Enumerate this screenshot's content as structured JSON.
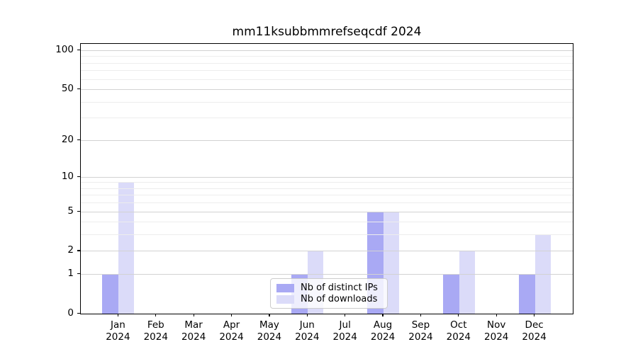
{
  "title": "mm11ksubbmmrefseqcdf 2024",
  "legend": {
    "items": [
      {
        "label": "Nb of distinct IPs",
        "color": "#a9a9f4"
      },
      {
        "label": "Nb of downloads",
        "color": "#dbdbf9"
      }
    ]
  },
  "chart_data": {
    "type": "bar",
    "title": "mm11ksubbmmrefseqcdf 2024",
    "categories": [
      "Jan",
      "Feb",
      "Mar",
      "Apr",
      "May",
      "Jun",
      "Jul",
      "Aug",
      "Sep",
      "Oct",
      "Nov",
      "Dec"
    ],
    "xtick_year": "2024",
    "series": [
      {
        "name": "Nb of distinct IPs",
        "color": "#a9a9f4",
        "values": [
          1,
          0,
          0,
          0,
          0,
          1,
          0,
          5,
          0,
          1,
          0,
          1
        ]
      },
      {
        "name": "Nb of downloads",
        "color": "#dbdbf9",
        "values": [
          9,
          0,
          0,
          0,
          0,
          2,
          0,
          5,
          0,
          2,
          0,
          3
        ]
      }
    ],
    "xlabel": "",
    "ylabel": "",
    "yscale": "log1p",
    "yticks": [
      0,
      1,
      2,
      5,
      10,
      20,
      50,
      100
    ],
    "yticks_minor": [
      3,
      4,
      6,
      7,
      8,
      9,
      30,
      40,
      60,
      70,
      80,
      90
    ],
    "ylim": [
      0,
      112
    ],
    "grid": true,
    "legend_position": "lower center"
  }
}
